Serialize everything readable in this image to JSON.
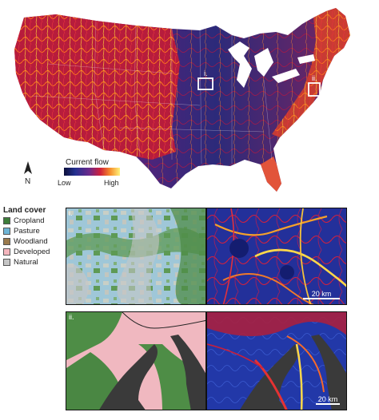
{
  "map": {
    "colorbar_title": "Current flow",
    "colorbar_low": "Low",
    "colorbar_high": "High",
    "north_label": "N",
    "inset_i_label": "i.",
    "inset_ii_label": "ii."
  },
  "legend": {
    "title": "Land cover",
    "items": [
      {
        "label": "Cropland",
        "color": "#3d7d3a"
      },
      {
        "label": "Pasture",
        "color": "#6fb5d6"
      },
      {
        "label": "Woodland",
        "color": "#9a7a4c"
      },
      {
        "label": "Developed",
        "color": "#f4b5bd"
      },
      {
        "label": "Natural",
        "color": "#c6c6c6"
      }
    ]
  },
  "panels": {
    "top_left_label": "i.",
    "bottom_left_label": "ii.",
    "scale_top": "20 km",
    "scale_bottom": "20 km"
  },
  "colors": {
    "flow_low": "#1a1f5e",
    "flow_mid": "#c2143a",
    "flow_high": "#fff27a"
  }
}
